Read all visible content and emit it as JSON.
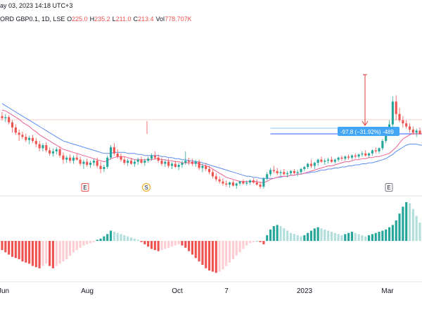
{
  "header": {
    "datetime": "ay 03, 2023 14:18 UTC+3",
    "symbol": "ORD GBP0.1, 1D, LSE",
    "ohlc": [
      {
        "label": "O",
        "value": "225.0"
      },
      {
        "label": "H",
        "value": "235.2"
      },
      {
        "label": "L",
        "value": "211.0"
      },
      {
        "label": "C",
        "value": "213.4"
      },
      {
        "label": "Vol",
        "value": "778.707K"
      }
    ]
  },
  "colors": {
    "up": "#26a69a",
    "down": "#ef5350",
    "ma_fast": "#f06292",
    "ma_slow": "#5b8def",
    "measure": "#2962ff",
    "arrow": "#e53935"
  },
  "chart_data": [
    {
      "type": "candlestick",
      "title": "",
      "x_tick_labels": [
        "Jun",
        "Aug",
        "Oct",
        "7",
        "2023",
        "Mar"
      ],
      "price_range": [
        190,
        300
      ],
      "candles": [
        [
          256,
          260,
          252,
          254
        ],
        [
          254,
          258,
          250,
          255
        ],
        [
          255,
          257,
          248,
          250
        ],
        [
          250,
          252,
          240,
          245
        ],
        [
          245,
          248,
          238,
          240
        ],
        [
          240,
          243,
          232,
          238
        ],
        [
          238,
          241,
          234,
          236
        ],
        [
          236,
          239,
          231,
          233
        ],
        [
          233,
          237,
          229,
          235
        ],
        [
          235,
          238,
          230,
          232
        ],
        [
          232,
          235,
          226,
          229
        ],
        [
          229,
          232,
          222,
          225
        ],
        [
          225,
          230,
          222,
          228
        ],
        [
          228,
          231,
          221,
          223
        ],
        [
          223,
          226,
          218,
          220
        ],
        [
          220,
          225,
          217,
          222
        ],
        [
          222,
          226,
          219,
          224
        ],
        [
          224,
          227,
          216,
          218
        ],
        [
          218,
          221,
          210,
          214
        ],
        [
          214,
          218,
          211,
          216
        ],
        [
          216,
          219,
          211,
          213
        ],
        [
          213,
          218,
          210,
          216
        ],
        [
          216,
          220,
          213,
          214
        ],
        [
          214,
          217,
          208,
          210
        ],
        [
          210,
          214,
          205,
          212
        ],
        [
          212,
          215,
          207,
          209
        ],
        [
          209,
          213,
          206,
          211
        ],
        [
          211,
          215,
          208,
          213
        ],
        [
          213,
          216,
          206,
          208
        ],
        [
          208,
          212,
          201,
          205
        ],
        [
          205,
          209,
          202,
          207
        ],
        [
          207,
          218,
          205,
          216
        ],
        [
          216,
          228,
          214,
          226
        ],
        [
          226,
          230,
          218,
          220
        ],
        [
          220,
          224,
          215,
          217
        ],
        [
          217,
          220,
          212,
          214
        ],
        [
          214,
          217,
          209,
          211
        ],
        [
          211,
          215,
          208,
          213
        ],
        [
          213,
          216,
          209,
          210
        ],
        [
          210,
          214,
          207,
          212
        ],
        [
          212,
          216,
          209,
          214
        ],
        [
          214,
          217,
          210,
          211
        ],
        [
          211,
          215,
          208,
          213
        ],
        [
          213,
          217,
          211,
          215
        ],
        [
          215,
          220,
          213,
          218
        ],
        [
          218,
          222,
          214,
          216
        ],
        [
          216,
          219,
          211,
          213
        ],
        [
          213,
          216,
          208,
          210
        ],
        [
          210,
          214,
          207,
          212
        ],
        [
          212,
          215,
          206,
          208
        ],
        [
          208,
          212,
          205,
          210
        ],
        [
          210,
          213,
          206,
          207
        ],
        [
          207,
          211,
          204,
          209
        ],
        [
          209,
          213,
          206,
          211
        ],
        [
          211,
          222,
          209,
          213
        ],
        [
          213,
          216,
          209,
          212
        ],
        [
          212,
          215,
          208,
          210
        ],
        [
          210,
          214,
          207,
          212
        ],
        [
          212,
          214,
          204,
          206
        ],
        [
          206,
          210,
          202,
          208
        ],
        [
          208,
          211,
          203,
          205
        ],
        [
          205,
          208,
          200,
          202
        ],
        [
          202,
          205,
          196,
          198
        ],
        [
          198,
          201,
          193,
          195
        ],
        [
          195,
          198,
          191,
          193
        ],
        [
          193,
          196,
          189,
          191
        ],
        [
          191,
          194,
          188,
          190
        ],
        [
          190,
          193,
          187,
          192
        ],
        [
          192,
          194,
          188,
          189
        ],
        [
          189,
          192,
          186,
          191
        ],
        [
          191,
          194,
          189,
          193
        ],
        [
          193,
          195,
          190,
          191
        ],
        [
          191,
          194,
          189,
          192
        ],
        [
          192,
          195,
          190,
          194
        ],
        [
          194,
          196,
          191,
          192
        ],
        [
          192,
          195,
          189,
          190
        ],
        [
          190,
          193,
          186,
          188
        ],
        [
          188,
          197,
          186,
          196
        ],
        [
          196,
          202,
          194,
          200
        ],
        [
          200,
          206,
          198,
          204
        ],
        [
          204,
          208,
          201,
          203
        ],
        [
          203,
          206,
          199,
          201
        ],
        [
          201,
          204,
          198,
          202
        ],
        [
          202,
          205,
          199,
          200
        ],
        [
          200,
          203,
          197,
          201
        ],
        [
          201,
          204,
          199,
          203
        ],
        [
          203,
          205,
          200,
          201
        ],
        [
          201,
          204,
          198,
          202
        ],
        [
          202,
          206,
          200,
          205
        ],
        [
          205,
          208,
          203,
          207
        ],
        [
          207,
          211,
          205,
          210
        ],
        [
          210,
          214,
          206,
          208
        ],
        [
          208,
          212,
          205,
          211
        ],
        [
          211,
          215,
          208,
          214
        ],
        [
          214,
          217,
          211,
          212
        ],
        [
          212,
          215,
          209,
          213
        ],
        [
          213,
          216,
          210,
          214
        ],
        [
          214,
          217,
          211,
          212
        ],
        [
          212,
          215,
          210,
          214
        ],
        [
          214,
          217,
          212,
          216
        ],
        [
          216,
          218,
          213,
          215
        ],
        [
          215,
          218,
          213,
          217
        ],
        [
          217,
          219,
          214,
          216
        ],
        [
          216,
          219,
          214,
          218
        ],
        [
          218,
          220,
          215,
          217
        ],
        [
          217,
          220,
          215,
          219
        ],
        [
          219,
          222,
          217,
          220
        ],
        [
          220,
          223,
          217,
          218
        ],
        [
          218,
          221,
          216,
          220
        ],
        [
          220,
          224,
          218,
          223
        ],
        [
          223,
          226,
          220,
          222
        ],
        [
          222,
          226,
          220,
          225
        ],
        [
          225,
          234,
          223,
          232
        ],
        [
          232,
          244,
          230,
          242
        ],
        [
          242,
          252,
          238,
          248
        ],
        [
          248,
          275,
          246,
          270
        ],
        [
          270,
          276,
          252,
          258
        ],
        [
          258,
          264,
          250,
          252
        ],
        [
          252,
          256,
          245,
          249
        ],
        [
          249,
          252,
          244,
          246
        ],
        [
          246,
          249,
          240,
          243
        ],
        [
          243,
          246,
          238,
          240
        ],
        [
          240,
          244,
          236,
          242
        ],
        [
          242,
          245,
          238,
          239
        ]
      ],
      "moving_averages": [
        {
          "values": [
            268,
            266,
            264,
            262,
            260,
            258,
            256,
            254,
            252,
            250,
            248,
            246,
            244,
            242,
            240,
            238,
            236,
            234,
            232,
            231,
            230,
            229,
            228,
            227,
            226,
            225,
            224,
            223,
            222,
            221,
            220,
            220,
            220,
            221,
            221,
            221,
            221,
            220,
            220,
            220,
            219,
            219,
            218,
            218,
            218,
            218,
            218,
            217,
            217,
            216,
            216,
            215,
            215,
            214,
            214,
            213,
            213,
            212,
            212,
            211,
            210,
            209,
            208,
            207,
            206,
            205,
            204,
            203,
            202,
            201,
            200,
            199,
            198,
            198,
            197,
            197,
            196,
            196,
            196,
            196,
            196,
            197,
            197,
            198,
            198,
            199,
            199,
            200,
            200,
            201,
            201,
            202,
            202,
            203,
            204,
            204,
            205,
            205,
            206,
            206,
            207,
            207,
            208,
            208,
            209,
            209,
            210,
            210,
            211,
            211,
            212,
            213,
            214,
            215,
            217,
            219,
            222,
            224,
            226,
            228,
            229,
            229,
            229,
            228,
            228
          ]
        },
        {
          "values": [
            262,
            261,
            259,
            257,
            255,
            253,
            250,
            248,
            246,
            243,
            241,
            238,
            236,
            234,
            232,
            230,
            228,
            226,
            224,
            223,
            222,
            221,
            220,
            219,
            218,
            217,
            216,
            215,
            214,
            213,
            212,
            213,
            215,
            216,
            217,
            217,
            217,
            216,
            215,
            214,
            214,
            214,
            214,
            214,
            214,
            215,
            215,
            214,
            214,
            213,
            213,
            212,
            212,
            211,
            211,
            211,
            211,
            211,
            210,
            209,
            208,
            207,
            205,
            203,
            201,
            199,
            197,
            196,
            195,
            194,
            193,
            193,
            193,
            193,
            193,
            193,
            192,
            192,
            193,
            195,
            196,
            197,
            198,
            198,
            198,
            199,
            199,
            200,
            200,
            201,
            202,
            203,
            204,
            205,
            206,
            207,
            208,
            208,
            209,
            210,
            211,
            212,
            212,
            213,
            214,
            214,
            215,
            215,
            216,
            216,
            217,
            217,
            218,
            219,
            220,
            223,
            226,
            230,
            234,
            236,
            238,
            239,
            239,
            239,
            239,
            238
          ]
        }
      ],
      "oscillator": {
        "type": "histogram",
        "values": [
          -8,
          -10,
          -12,
          -14,
          -15,
          -16,
          -18,
          -19,
          -20,
          -22,
          -23,
          -24,
          -22,
          -20,
          -22,
          -24,
          -22,
          -20,
          -18,
          -16,
          -13,
          -10,
          -8,
          -6,
          -4,
          -3,
          -2,
          -1,
          1,
          2,
          4,
          6,
          9,
          8,
          7,
          6,
          5,
          4,
          3,
          2,
          1,
          -1,
          -3,
          -5,
          -7,
          -8,
          -9,
          -8,
          -7,
          -6,
          -5,
          -4,
          -3,
          -4,
          -6,
          -9,
          -12,
          -15,
          -18,
          -21,
          -24,
          -26,
          -27,
          -28,
          -27,
          -25,
          -22,
          -19,
          -16,
          -13,
          -10,
          -7,
          -4,
          -2,
          -1,
          0,
          -1,
          -3,
          5,
          10,
          13,
          14,
          13,
          11,
          9,
          7,
          6,
          5,
          4,
          5,
          7,
          9,
          11,
          12,
          11,
          10,
          9,
          8,
          7,
          6,
          5,
          6,
          7,
          8,
          7,
          6,
          5,
          4,
          5,
          6,
          7,
          8,
          9,
          10,
          12,
          14,
          18,
          24,
          30,
          34,
          33,
          28,
          22,
          16,
          10
        ]
      },
      "annotations": {
        "measure_label": "-97.8 (−31.92%) -489",
        "event_badges": [
          "E",
          "S",
          "E"
        ]
      }
    }
  ]
}
